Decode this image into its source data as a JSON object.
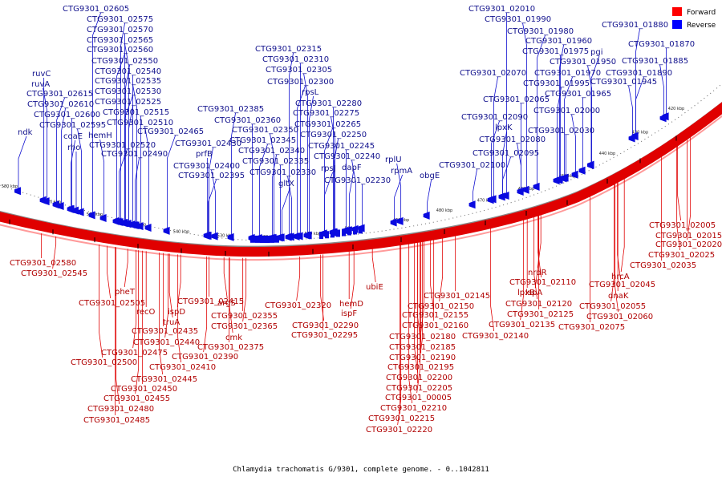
{
  "caption": "Chlamydia trachomatis G/9301, complete genome. - 0..1042811",
  "legend": [
    {
      "label": "Forward",
      "color": "#ff0000"
    },
    {
      "label": "Reverse",
      "color": "#0000ff"
    }
  ],
  "colors": {
    "forward": "#e00000",
    "reverse": "#0000e0",
    "backbone": "#ff0000",
    "ring_gray": "#888888"
  },
  "ticks": [
    "580 kbp",
    "570 kbp",
    "560 kbp",
    "550 kbp",
    "540 kbp",
    "530 kbp",
    "520 kbp",
    "510 kbp",
    "500 kbp",
    "490 kbp",
    "480 kbp",
    "470 kbp",
    "460 kbp",
    "450 kbp",
    "440 kbp",
    "430 kbp",
    "420 kbp"
  ],
  "forward_labels": [
    "CTG9301_02005",
    "CTG9301_02015",
    "CTG9301_02020",
    "CTG9301_02025",
    "CTG9301_02035",
    "hrcA",
    "CTG9301_02045",
    "dnaK",
    "CTG9301_02055",
    "CTG9301_02060",
    "CTG9301_02075",
    "nrdR",
    "CTG9301_02110",
    "lpxB",
    "lspA",
    "CTG9301_02120",
    "CTG9301_02125",
    "CTG9301_02135",
    "CTG9301_02140",
    "CTG9301_02145",
    "CTG9301_02150",
    "CTG9301_02155",
    "CTG9301_02160",
    "CTG9301_02180",
    "CTG9301_02185",
    "CTG9301_02190",
    "CTG9301_02195",
    "CTG9301_02200",
    "CTG9301_02205",
    "CTG9301_00005",
    "CTG9301_02210",
    "CTG9301_02215",
    "CTG9301_02220",
    "ubiE",
    "hemD",
    "ispF",
    "CTG9301_02290",
    "CTG9301_02295",
    "CTG9301_02320",
    "argS",
    "CTG9301_02355",
    "CTG9301_02365",
    "cmk",
    "CTG9301_02375",
    "CTG9301_02390",
    "CTG9301_02410",
    "CTG9301_02415",
    "ispD",
    "truA",
    "CTG9301_02435",
    "CTG9301_02440",
    "CTG9301_02445",
    "CTG9301_02450",
    "CTG9301_02455",
    "CTG9301_02480",
    "CTG9301_02485",
    "pheT",
    "CTG9301_02505",
    "recO",
    "CTG9301_02475",
    "CTG9301_02500",
    "CTG9301_02580",
    "CTG9301_02545"
  ],
  "reverse_labels": [
    "CTG9301_02605",
    "CTG9301_02575",
    "CTG9301_02570",
    "CTG9301_02565",
    "CTG9301_02560",
    "CTG9301_02550",
    "CTG9301_02540",
    "CTG9301_02535",
    "CTG9301_02530",
    "CTG9301_02525",
    "CTG9301_02515",
    "CTG9301_02510",
    "CTG9301_02520",
    "CTG9301_02490",
    "ruvC",
    "ruvA",
    "CTG9301_02615",
    "CTG9301_02610",
    "CTG9301_02600",
    "CTG9301_02595",
    "ndk",
    "coaE",
    "rho",
    "hemH",
    "CTG9301_02465",
    "CTG9301_02430",
    "prfB",
    "CTG9301_02400",
    "CTG9301_02395",
    "CTG9301_02385",
    "CTG9301_02360",
    "CTG9301_02350",
    "CTG9301_02345",
    "CTG9301_02340",
    "CTG9301_02335",
    "CTG9301_02330",
    "gltX",
    "CTG9301_02315",
    "CTG9301_02310",
    "CTG9301_02305",
    "CTG9301_02300",
    "rpsL",
    "CTG9301_02280",
    "CTG9301_02275",
    "CTG9301_02265",
    "CTG9301_02250",
    "CTG9301_02245",
    "CTG9301_02240",
    "rpsJ",
    "dapF",
    "CTG9301_02230",
    "rplU",
    "rpmA",
    "obgE",
    "CTG9301_02010",
    "CTG9301_01990",
    "CTG9301_01980",
    "CTG9301_01960",
    "CTG9301_01975",
    "CTG9301_01950",
    "CTG9301_01970",
    "CTG9301_01995",
    "CTG9301_01965",
    "CTG9301_01945",
    "pgi",
    "CTG9301_01880",
    "CTG9301_01870",
    "CTG9301_01885",
    "CTG9301_01890",
    "CTG9301_02070",
    "CTG9301_02065",
    "CTG9301_02000",
    "CTG9301_02090",
    "lpxK",
    "CTG9301_02030",
    "CTG9301_02080",
    "CTG9301_02095",
    "CTG9301_02100"
  ]
}
